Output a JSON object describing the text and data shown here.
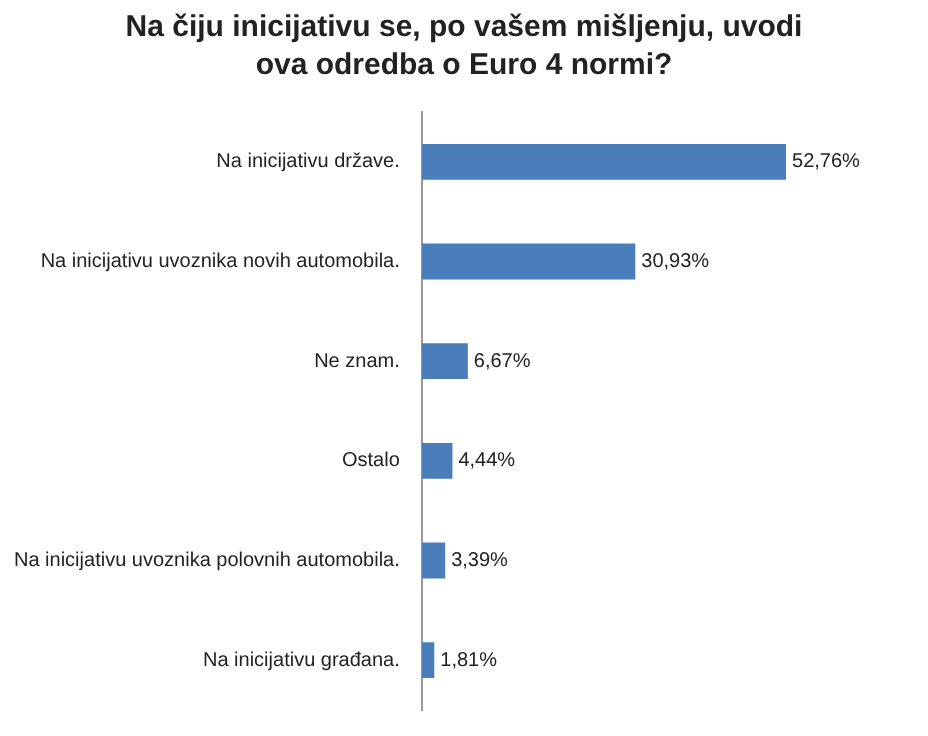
{
  "chart_data": {
    "type": "bar",
    "orientation": "horizontal",
    "title": "Na čiju inicijativu se, po vašem mišljenju, uvodi ova odredba o Euro 4 normi?",
    "categories": [
      "Na inicijativu države.",
      "Na inicijativu uvoznika novih automobila.",
      "Ne znam.",
      "Ostalo",
      "Na inicijativu uvoznika polovnih automobila.",
      "Na inicijativu građana."
    ],
    "values": [
      52.76,
      30.93,
      6.67,
      4.44,
      3.39,
      1.81
    ],
    "value_labels": [
      "52,76%",
      "30,93%",
      "6,67%",
      "4,44%",
      "3,39%",
      "1,81%"
    ],
    "color": "#4a7ebb",
    "grid": false,
    "legend": false,
    "tick_labels": "y"
  }
}
